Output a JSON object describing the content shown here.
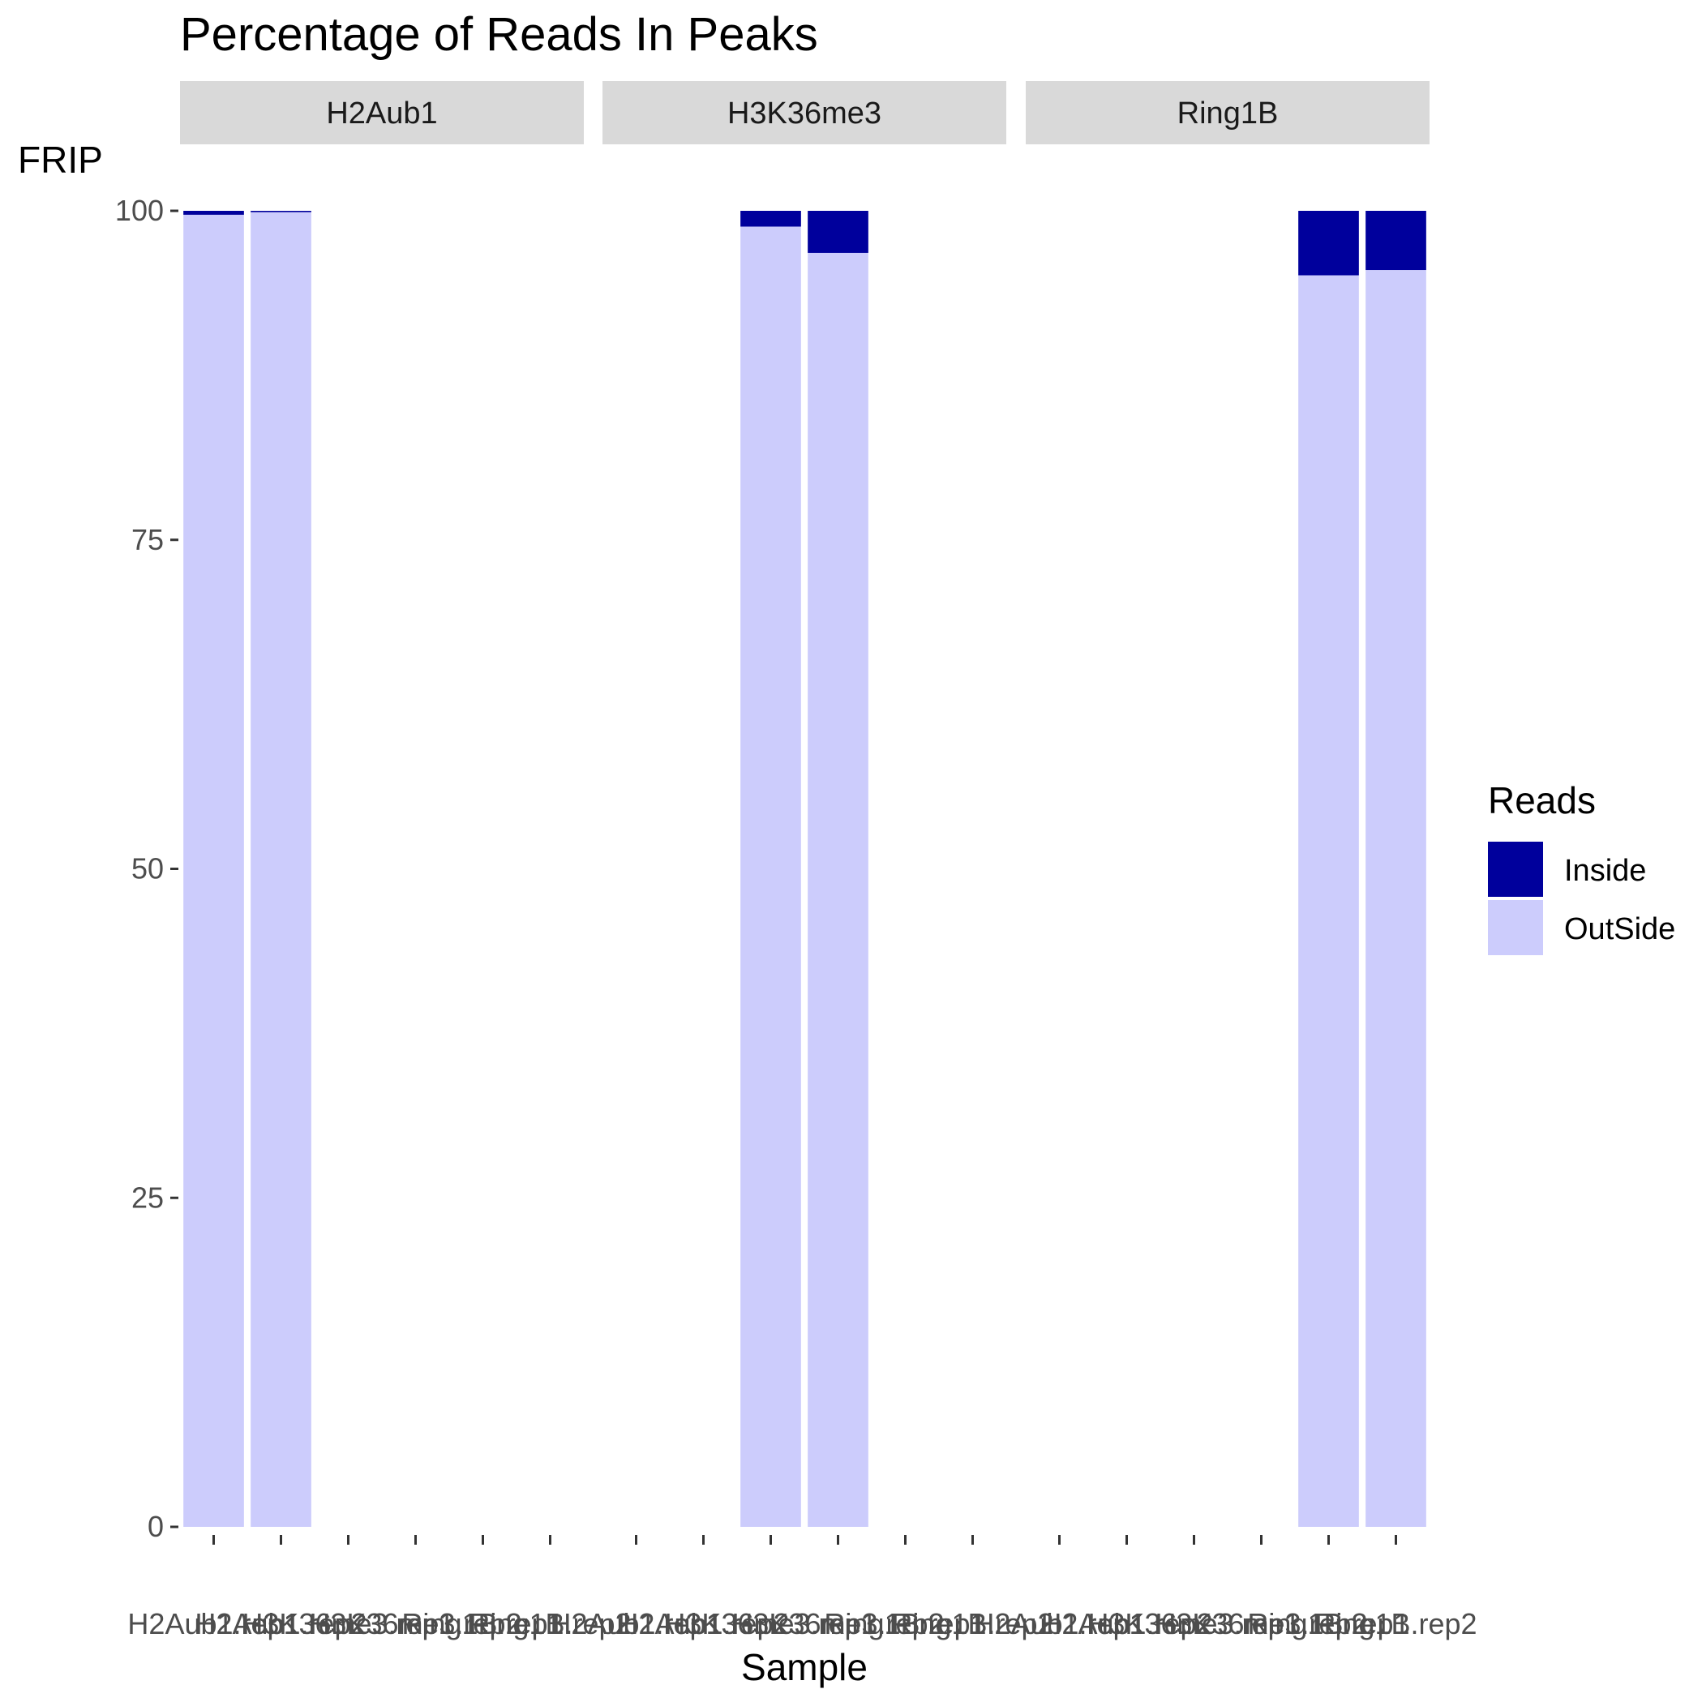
{
  "chart_data": {
    "type": "bar",
    "stacked": true,
    "title": "Percentage of Reads In Peaks",
    "xlabel": "Sample",
    "ylabel": "FRIP",
    "ylim": [
      0,
      100
    ],
    "yticks": [
      "0",
      "25",
      "50",
      "75",
      "100"
    ],
    "categories": [
      "H2Aub1.rep1",
      "H2Aub1.rep2",
      "H3K36me3.rep1",
      "H3K36me3.rep2",
      "Ring1B.rep1",
      "Ring1B.rep2"
    ],
    "facets": [
      {
        "label": "H2Aub1",
        "present": [
          0,
          1
        ]
      },
      {
        "label": "H3K36me3",
        "present": [
          2,
          3
        ]
      },
      {
        "label": "Ring1B",
        "present": [
          4,
          5
        ]
      }
    ],
    "series": [
      {
        "name": "Inside",
        "color": "#00009C",
        "values": [
          0.3,
          0.1,
          1.2,
          3.2,
          4.9,
          4.5
        ]
      },
      {
        "name": "OutSide",
        "color": "#CCCCFC",
        "values": [
          99.7,
          99.9,
          98.8,
          96.8,
          95.1,
          95.5
        ]
      }
    ],
    "legend": {
      "title": "Reads",
      "position": "right"
    },
    "grid": false
  }
}
